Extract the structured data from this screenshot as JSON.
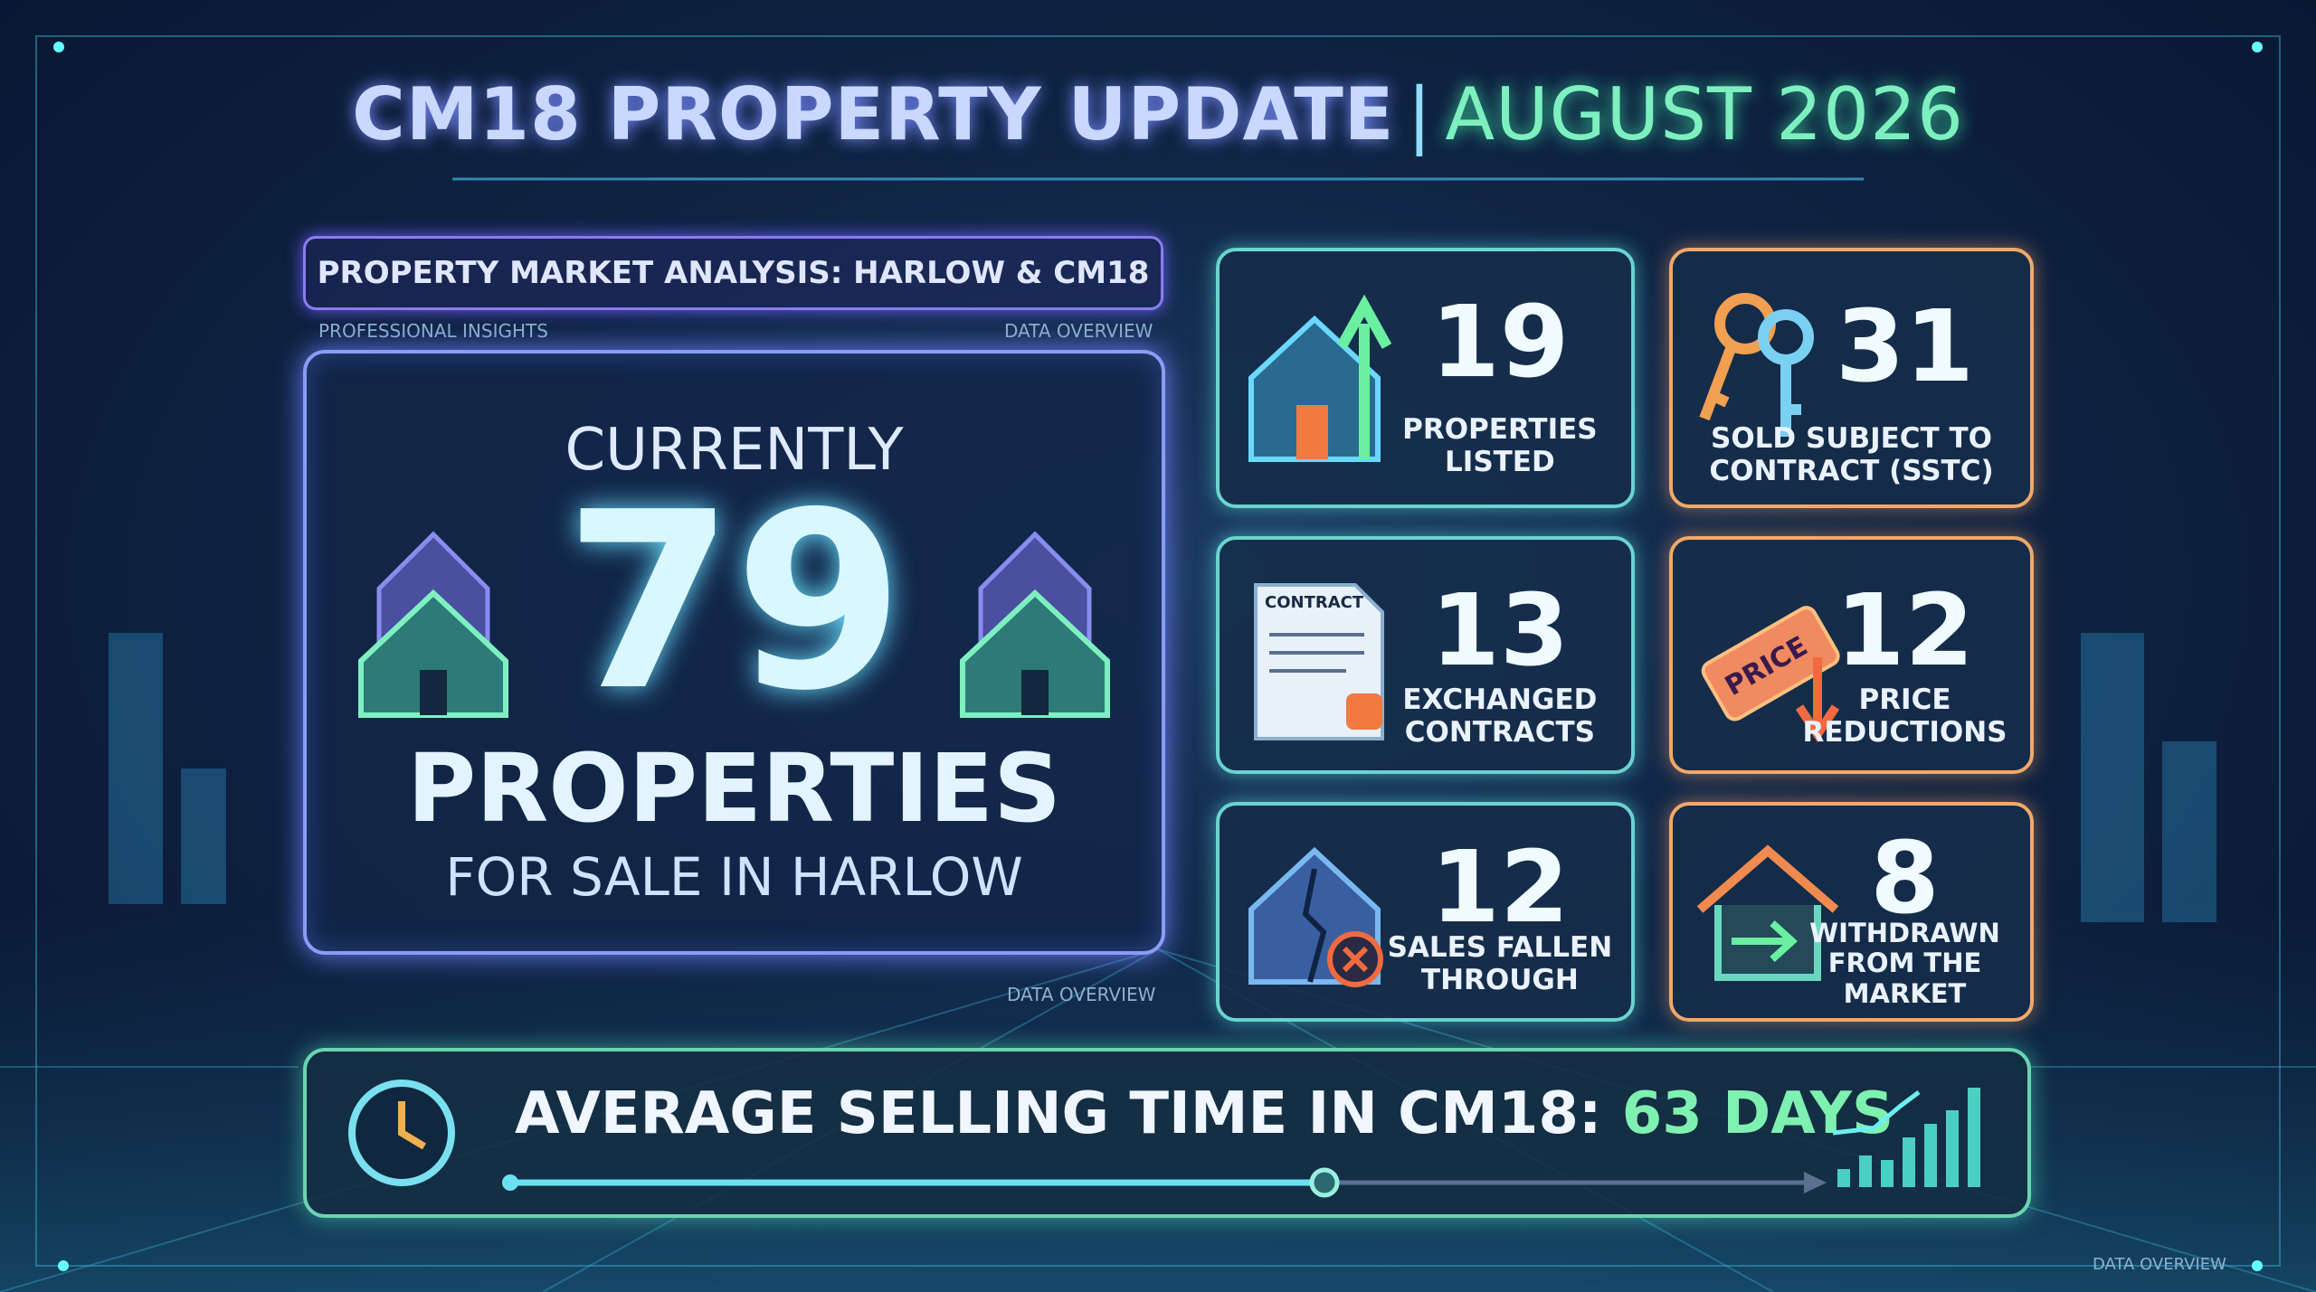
{
  "header": {
    "title": "CM18 PROPERTY UPDATE",
    "separator": "|",
    "date": "AUGUST 2026"
  },
  "analysis": {
    "label": "PROPERTY MARKET ANALYSIS: HARLOW & CM18",
    "left_caption": "PROFESSIONAL INSIGHTS",
    "right_caption": "DATA OVERVIEW",
    "bottom_caption": "DATA OVERVIEW"
  },
  "headline": {
    "lead": "CURRENTLY",
    "value": 79,
    "unit": "PROPERTIES",
    "detail": "FOR SALE IN HARLOW"
  },
  "stats": [
    {
      "value": 19,
      "label": [
        "PROPERTIES",
        "LISTED"
      ]
    },
    {
      "value": 31,
      "label": [
        "SOLD SUBJECT TO",
        "CONTRACT (SSTC)"
      ]
    },
    {
      "value": 13,
      "label": [
        "EXCHANGED",
        "CONTRACTS"
      ],
      "icon_text": "CONTRACT"
    },
    {
      "value": 12,
      "label": [
        "PRICE",
        "REDUCTIONS"
      ],
      "icon_text": "PRICE"
    },
    {
      "value": 12,
      "label": [
        "SALES FALLEN",
        "THROUGH"
      ]
    },
    {
      "value": 8,
      "label": [
        "WITHDRAWN",
        "FROM THE",
        "MARKET"
      ]
    }
  ],
  "average": {
    "label": "AVERAGE SELLING TIME IN CM18:",
    "value": "63 DAYS"
  },
  "footer": {
    "caption": "DATA OVERVIEW"
  }
}
